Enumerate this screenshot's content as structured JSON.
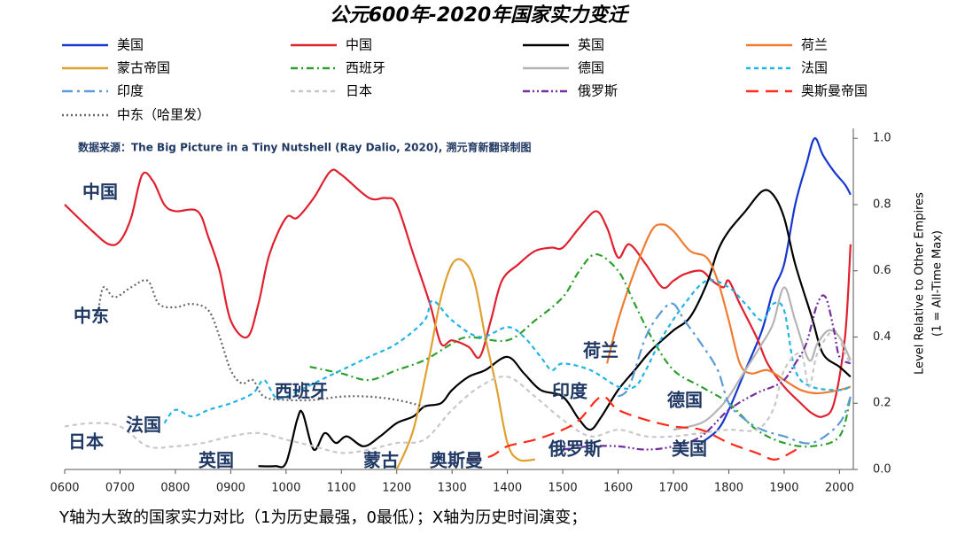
{
  "chart_data": {
    "type": "line",
    "title": "公元600年-2020年国家实力变迁",
    "source_note": "数据来源：The Big Picture in a Tiny Nutshell (Ray Dalio, 2020), 溯元育新翻译制图",
    "footnote": "Y轴为大致的国家实力对比（1为历史最强，0最低）；X轴为历史时间演变；",
    "y_label": [
      "Level Relative to Other Empires",
      "(1 = All-Time Max)"
    ],
    "y_axis_side": "right",
    "xlim": [
      600,
      2025
    ],
    "ylim": [
      0,
      1.03
    ],
    "xticks": [
      {
        "value": 600,
        "label": "0600"
      },
      {
        "value": 700,
        "label": "0700"
      },
      {
        "value": 800,
        "label": "0800"
      },
      {
        "value": 900,
        "label": "0900"
      },
      1000,
      1100,
      1200,
      1300,
      1400,
      1500,
      1600,
      1700,
      1800,
      1900,
      2000
    ],
    "yticks": [
      {
        "value": 0,
        "label": "0.0"
      },
      0.2,
      0.4,
      0.6,
      0.8,
      {
        "value": 1,
        "label": "1.0"
      }
    ],
    "annotations": [
      "中国",
      "中东",
      "西班牙",
      "法国",
      "日本",
      "英国",
      "蒙古",
      "奥斯曼",
      "俄罗斯",
      "荷兰",
      "印度",
      "德国",
      "美国"
    ],
    "series": [
      {
        "name": "美国",
        "color": "#1537d0",
        "dash": "solid",
        "x": [
          1750,
          1780,
          1800,
          1830,
          1860,
          1880,
          1900,
          1920,
          1940,
          1955,
          1970,
          1990,
          2010,
          2020
        ],
        "values": [
          0.08,
          0.12,
          0.18,
          0.3,
          0.42,
          0.54,
          0.62,
          0.8,
          0.92,
          1.0,
          0.95,
          0.9,
          0.86,
          0.83
        ]
      },
      {
        "name": "中国",
        "color": "#e0202f",
        "dash": "solid",
        "x": [
          600,
          650,
          680,
          700,
          720,
          740,
          760,
          780,
          800,
          840,
          860,
          880,
          900,
          930,
          950,
          970,
          1000,
          1020,
          1050,
          1080,
          1100,
          1150,
          1180,
          1200,
          1230,
          1260,
          1280,
          1300,
          1330,
          1350,
          1370,
          1390,
          1420,
          1450,
          1480,
          1500,
          1530,
          1560,
          1580,
          1600,
          1620,
          1650,
          1680,
          1700,
          1720,
          1750,
          1770,
          1790,
          1800,
          1820,
          1850,
          1870,
          1900,
          1930,
          1950,
          1970,
          1990,
          2010,
          2020
        ],
        "values": [
          0.8,
          0.72,
          0.68,
          0.69,
          0.76,
          0.89,
          0.87,
          0.8,
          0.78,
          0.78,
          0.7,
          0.6,
          0.45,
          0.4,
          0.5,
          0.65,
          0.76,
          0.76,
          0.82,
          0.9,
          0.89,
          0.82,
          0.82,
          0.8,
          0.65,
          0.5,
          0.38,
          0.39,
          0.37,
          0.34,
          0.45,
          0.57,
          0.62,
          0.66,
          0.67,
          0.67,
          0.73,
          0.78,
          0.73,
          0.64,
          0.68,
          0.62,
          0.55,
          0.57,
          0.59,
          0.6,
          0.57,
          0.55,
          0.57,
          0.5,
          0.4,
          0.32,
          0.25,
          0.2,
          0.17,
          0.16,
          0.2,
          0.4,
          0.68
        ]
      },
      {
        "name": "英国",
        "color": "#000000",
        "dash": "solid",
        "x": [
          950,
          980,
          1000,
          1020,
          1030,
          1050,
          1070,
          1090,
          1110,
          1140,
          1170,
          1200,
          1230,
          1250,
          1280,
          1300,
          1330,
          1360,
          1400,
          1430,
          1460,
          1500,
          1530,
          1550,
          1570,
          1600,
          1630,
          1660,
          1700,
          1730,
          1760,
          1780,
          1800,
          1830,
          1860,
          1880,
          1900,
          1920,
          1950,
          1970,
          2000,
          2020
        ],
        "values": [
          0.01,
          0.01,
          0.02,
          0.15,
          0.17,
          0.06,
          0.11,
          0.08,
          0.1,
          0.07,
          0.1,
          0.14,
          0.16,
          0.19,
          0.2,
          0.24,
          0.28,
          0.3,
          0.34,
          0.29,
          0.24,
          0.22,
          0.15,
          0.12,
          0.16,
          0.24,
          0.3,
          0.36,
          0.42,
          0.46,
          0.56,
          0.66,
          0.72,
          0.78,
          0.84,
          0.83,
          0.76,
          0.62,
          0.46,
          0.35,
          0.31,
          0.28
        ]
      },
      {
        "name": "荷兰",
        "color": "#f07b30",
        "dash": "solid",
        "x": [
          1580,
          1600,
          1630,
          1660,
          1680,
          1700,
          1730,
          1760,
          1780,
          1800,
          1820,
          1840,
          1870,
          1900,
          1930,
          1960,
          2000,
          2020
        ],
        "values": [
          0.32,
          0.45,
          0.6,
          0.72,
          0.74,
          0.72,
          0.66,
          0.64,
          0.57,
          0.45,
          0.32,
          0.29,
          0.3,
          0.27,
          0.24,
          0.23,
          0.24,
          0.25
        ]
      },
      {
        "name": "蒙古帝国",
        "color": "#e0a030",
        "dash": "solid",
        "x": [
          1200,
          1230,
          1260,
          1280,
          1300,
          1320,
          1340,
          1360,
          1380,
          1400,
          1420,
          1450
        ],
        "values": [
          0.0,
          0.12,
          0.35,
          0.52,
          0.62,
          0.63,
          0.57,
          0.4,
          0.25,
          0.08,
          0.03,
          0.03
        ]
      },
      {
        "name": "西班牙",
        "color": "#2ca02c",
        "dash": "dashdot",
        "x": [
          1043,
          1100,
          1150,
          1200,
          1250,
          1300,
          1330,
          1400,
          1450,
          1500,
          1530,
          1560,
          1600,
          1630,
          1660,
          1700,
          1750,
          1800,
          1850,
          1900,
          1950,
          2000,
          2020
        ],
        "values": [
          0.31,
          0.29,
          0.27,
          0.3,
          0.33,
          0.38,
          0.4,
          0.39,
          0.45,
          0.52,
          0.6,
          0.65,
          0.6,
          0.5,
          0.4,
          0.3,
          0.25,
          0.2,
          0.12,
          0.08,
          0.07,
          0.1,
          0.22
        ]
      },
      {
        "name": "德国",
        "color": "#b4b4b4",
        "dash": "solid",
        "x": [
          1700,
          1750,
          1780,
          1800,
          1830,
          1860,
          1880,
          1900,
          1920,
          1945,
          1960,
          1980,
          2000,
          2020
        ],
        "values": [
          0.12,
          0.14,
          0.18,
          0.22,
          0.3,
          0.38,
          0.44,
          0.55,
          0.45,
          0.33,
          0.38,
          0.42,
          0.4,
          0.33
        ]
      },
      {
        "name": "法国",
        "color": "#1fb4e8",
        "dash": "dash",
        "x": [
          780,
          800,
          830,
          860,
          900,
          940,
          960,
          980,
          1000,
          1050,
          1100,
          1150,
          1200,
          1250,
          1265,
          1300,
          1350,
          1400,
          1430,
          1460,
          1480,
          1500,
          1550,
          1600,
          1630,
          1650,
          1680,
          1720,
          1760,
          1800,
          1830,
          1860,
          1880,
          1900,
          1920,
          1950,
          2000,
          2020
        ],
        "values": [
          0.14,
          0.18,
          0.16,
          0.18,
          0.2,
          0.23,
          0.27,
          0.22,
          0.22,
          0.26,
          0.3,
          0.34,
          0.38,
          0.45,
          0.51,
          0.45,
          0.4,
          0.43,
          0.4,
          0.34,
          0.3,
          0.32,
          0.3,
          0.25,
          0.25,
          0.3,
          0.4,
          0.5,
          0.57,
          0.55,
          0.5,
          0.45,
          0.5,
          0.48,
          0.3,
          0.25,
          0.24,
          0.25
        ]
      },
      {
        "name": "印度",
        "color": "#5a9bd5",
        "dash": "longdashdot",
        "x": [
          1600,
          1620,
          1650,
          1680,
          1700,
          1720,
          1750,
          1780,
          1800,
          1830,
          1860,
          1900,
          1950,
          2000,
          2020
        ],
        "values": [
          0.22,
          0.25,
          0.4,
          0.48,
          0.5,
          0.45,
          0.38,
          0.3,
          0.2,
          0.15,
          0.12,
          0.1,
          0.08,
          0.14,
          0.22
        ]
      },
      {
        "name": "日本",
        "color": "#c8c8c8",
        "dash": "dash",
        "x": [
          600,
          650,
          700,
          750,
          800,
          850,
          900,
          950,
          1000,
          1050,
          1100,
          1150,
          1200,
          1250,
          1300,
          1350,
          1400,
          1450,
          1500,
          1550,
          1600,
          1650,
          1700,
          1750,
          1800,
          1850,
          1880,
          1900,
          1930,
          1945,
          1960,
          1990,
          2010,
          2020
        ],
        "values": [
          0.13,
          0.14,
          0.13,
          0.07,
          0.07,
          0.08,
          0.1,
          0.11,
          0.09,
          0.07,
          0.05,
          0.06,
          0.08,
          0.09,
          0.18,
          0.25,
          0.28,
          0.22,
          0.15,
          0.1,
          0.12,
          0.1,
          0.1,
          0.11,
          0.12,
          0.12,
          0.18,
          0.3,
          0.35,
          0.25,
          0.35,
          0.42,
          0.35,
          0.32
        ]
      },
      {
        "name": "俄罗斯",
        "color": "#7030a0",
        "dash": "dashdotdot",
        "x": [
          1500,
          1550,
          1600,
          1650,
          1700,
          1750,
          1800,
          1850,
          1880,
          1900,
          1920,
          1940,
          1960,
          1975,
          1990,
          2000,
          2020
        ],
        "values": [
          0.06,
          0.07,
          0.07,
          0.06,
          0.07,
          0.1,
          0.18,
          0.23,
          0.25,
          0.27,
          0.32,
          0.38,
          0.5,
          0.52,
          0.42,
          0.34,
          0.32
        ]
      },
      {
        "name": "奥斯曼帝国",
        "color": "#ff2a1a",
        "dash": "longdash",
        "x": [
          1330,
          1370,
          1400,
          1450,
          1500,
          1530,
          1570,
          1600,
          1650,
          1700,
          1750,
          1800,
          1850,
          1880,
          1900,
          1922
        ],
        "values": [
          0.03,
          0.04,
          0.07,
          0.09,
          0.12,
          0.15,
          0.22,
          0.18,
          0.15,
          0.13,
          0.12,
          0.08,
          0.05,
          0.03,
          0.04,
          0.06
        ]
      },
      {
        "name": "中东（哈里发）",
        "color": "#666666",
        "dash": "dot",
        "x": [
          660,
          670,
          690,
          720,
          750,
          770,
          800,
          830,
          860,
          880,
          900,
          920,
          940,
          960,
          1000,
          1050,
          1100,
          1150,
          1200,
          1250
        ],
        "values": [
          0.47,
          0.55,
          0.52,
          0.55,
          0.57,
          0.5,
          0.49,
          0.5,
          0.48,
          0.4,
          0.3,
          0.26,
          0.27,
          0.22,
          0.21,
          0.21,
          0.22,
          0.22,
          0.21,
          0.19
        ]
      }
    ]
  }
}
